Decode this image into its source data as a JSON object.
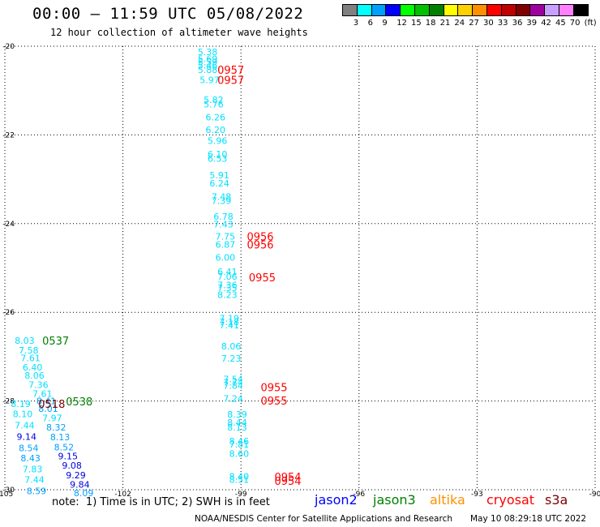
{
  "header": {
    "title": "00:00 — 11:59 UTC 05/08/2022",
    "subtitle": "12 hour collection of altimeter wave heights"
  },
  "legend": {
    "swatches": [
      {
        "label": "3",
        "color": "#808080"
      },
      {
        "label": "6",
        "color": "#00ffff"
      },
      {
        "label": "9",
        "color": "#00a0ff"
      },
      {
        "label": "12",
        "color": "#0000ff"
      },
      {
        "label": "15",
        "color": "#00ff00"
      },
      {
        "label": "18",
        "color": "#00c000"
      },
      {
        "label": "21",
        "color": "#008000"
      },
      {
        "label": "24",
        "color": "#ffff00"
      },
      {
        "label": "27",
        "color": "#ffd000"
      },
      {
        "label": "30",
        "color": "#ff9000"
      },
      {
        "label": "33",
        "color": "#ff0000"
      },
      {
        "label": "36",
        "color": "#c00000"
      },
      {
        "label": "39",
        "color": "#800000"
      },
      {
        "label": "42",
        "color": "#a000a0"
      },
      {
        "label": "45",
        "color": "#c8a0ff"
      },
      {
        "label": "70",
        "color": "#ff80ff"
      },
      {
        "label": "(ft)",
        "color": "#000000"
      }
    ]
  },
  "map": {
    "lon_range": [
      -105,
      -90
    ],
    "lat_range": [
      -30,
      -20
    ],
    "x_ticks": [
      "-105",
      "-102",
      "-99",
      "-96",
      "-93",
      "-90"
    ],
    "y_ticks": [
      "-20",
      "-22",
      "-24",
      "-26",
      "-28",
      "-30"
    ],
    "tick_lons": [
      -105,
      -102,
      -99,
      -96,
      -93,
      -90
    ],
    "tick_lats": [
      -20,
      -22,
      -24,
      -26,
      -28,
      -30
    ],
    "grid": true
  },
  "observations": [
    {
      "text": "5.38",
      "lon": -100.1,
      "lat": -20.13,
      "color": "#00e0ff"
    },
    {
      "text": "5.69",
      "lon": -100.1,
      "lat": -20.28,
      "color": "#00e0ff"
    },
    {
      "text": "5.59",
      "lon": -100.1,
      "lat": -20.36,
      "color": "#00e0ff"
    },
    {
      "text": "5.46",
      "lon": -100.1,
      "lat": -20.43,
      "color": "#00e0ff"
    },
    {
      "text": "5.88",
      "lon": -100.1,
      "lat": -20.53,
      "color": "#00e0ff"
    },
    {
      "text": "5.97",
      "lon": -100.05,
      "lat": -20.76,
      "color": "#00e0ff"
    },
    {
      "text": "5.82",
      "lon": -99.95,
      "lat": -21.21,
      "color": "#00e0ff"
    },
    {
      "text": "5.76",
      "lon": -99.95,
      "lat": -21.31,
      "color": "#00e0ff"
    },
    {
      "text": "6.26",
      "lon": -99.9,
      "lat": -21.6,
      "color": "#00e0ff"
    },
    {
      "text": "6.20",
      "lon": -99.9,
      "lat": -21.88,
      "color": "#00e0ff"
    },
    {
      "text": "5.96",
      "lon": -99.85,
      "lat": -22.13,
      "color": "#00e0ff"
    },
    {
      "text": "6.10",
      "lon": -99.85,
      "lat": -22.43,
      "color": "#00e0ff"
    },
    {
      "text": "6.53",
      "lon": -99.85,
      "lat": -22.53,
      "color": "#00e0ff"
    },
    {
      "text": "5.91",
      "lon": -99.8,
      "lat": -22.91,
      "color": "#00e0ff"
    },
    {
      "text": "6.24",
      "lon": -99.8,
      "lat": -23.09,
      "color": "#00e0ff"
    },
    {
      "text": "7.48",
      "lon": -99.75,
      "lat": -23.39,
      "color": "#00e0ff"
    },
    {
      "text": "7.39",
      "lon": -99.75,
      "lat": -23.48,
      "color": "#00e0ff"
    },
    {
      "text": "6.78",
      "lon": -99.7,
      "lat": -23.84,
      "color": "#00e0ff"
    },
    {
      "text": "7.43",
      "lon": -99.7,
      "lat": -24.01,
      "color": "#00e0ff"
    },
    {
      "text": "7.75",
      "lon": -99.65,
      "lat": -24.29,
      "color": "#00e0ff"
    },
    {
      "text": "6.87",
      "lon": -99.65,
      "lat": -24.47,
      "color": "#00e0ff"
    },
    {
      "text": "6.00",
      "lon": -99.65,
      "lat": -24.76,
      "color": "#00e0ff"
    },
    {
      "text": "6.41",
      "lon": -99.6,
      "lat": -25.08,
      "color": "#00e0ff"
    },
    {
      "text": "7.06",
      "lon": -99.6,
      "lat": -25.19,
      "color": "#00e0ff"
    },
    {
      "text": "7.36",
      "lon": -99.6,
      "lat": -25.38,
      "color": "#00e0ff"
    },
    {
      "text": "7.35",
      "lon": -99.6,
      "lat": -25.45,
      "color": "#00e0ff"
    },
    {
      "text": "8.23",
      "lon": -99.6,
      "lat": -25.6,
      "color": "#00e0ff"
    },
    {
      "text": "7.19",
      "lon": -99.55,
      "lat": -26.13,
      "color": "#00e0ff"
    },
    {
      "text": "7.18",
      "lon": -99.55,
      "lat": -26.22,
      "color": "#00e0ff"
    },
    {
      "text": "7.41",
      "lon": -99.55,
      "lat": -26.29,
      "color": "#00e0ff"
    },
    {
      "text": "8.06",
      "lon": -99.5,
      "lat": -26.76,
      "color": "#00e0ff"
    },
    {
      "text": "7.23",
      "lon": -99.5,
      "lat": -27.04,
      "color": "#00e0ff"
    },
    {
      "text": "7.54",
      "lon": -99.45,
      "lat": -27.5,
      "color": "#00e0ff"
    },
    {
      "text": "7.74",
      "lon": -99.45,
      "lat": -27.58,
      "color": "#00e0ff"
    },
    {
      "text": "7.84",
      "lon": -99.45,
      "lat": -27.65,
      "color": "#00e0ff"
    },
    {
      "text": "7.24",
      "lon": -99.45,
      "lat": -27.94,
      "color": "#00e0ff"
    },
    {
      "text": "8.39",
      "lon": -99.35,
      "lat": -28.3,
      "color": "#00e0ff"
    },
    {
      "text": "8.44",
      "lon": -99.35,
      "lat": -28.48,
      "color": "#00e0ff"
    },
    {
      "text": "8.13",
      "lon": -99.35,
      "lat": -28.59,
      "color": "#00e0ff"
    },
    {
      "text": "8.46",
      "lon": -99.3,
      "lat": -28.9,
      "color": "#00e0ff"
    },
    {
      "text": "7.81",
      "lon": -99.3,
      "lat": -28.98,
      "color": "#00e0ff"
    },
    {
      "text": "8.60",
      "lon": -99.3,
      "lat": -29.19,
      "color": "#00e0ff"
    },
    {
      "text": "8.40",
      "lon": -99.3,
      "lat": -29.7,
      "color": "#00e0ff"
    },
    {
      "text": "8.51",
      "lon": -99.3,
      "lat": -29.77,
      "color": "#00e0ff"
    },
    {
      "text": "8.03",
      "lon": -104.75,
      "lat": -26.64,
      "color": "#00e0ff"
    },
    {
      "text": "7.58",
      "lon": -104.65,
      "lat": -26.86,
      "color": "#00e0ff"
    },
    {
      "text": "7.61",
      "lon": -104.6,
      "lat": -27.03,
      "color": "#00e0ff"
    },
    {
      "text": "6.40",
      "lon": -104.55,
      "lat": -27.24,
      "color": "#00e0ff"
    },
    {
      "text": "8.06",
      "lon": -104.5,
      "lat": -27.42,
      "color": "#00e0ff"
    },
    {
      "text": "7.36",
      "lon": -104.4,
      "lat": -27.63,
      "color": "#00e0ff"
    },
    {
      "text": "7.61",
      "lon": -104.3,
      "lat": -27.83,
      "color": "#00e0ff"
    },
    {
      "text": "8.19",
      "lon": -104.85,
      "lat": -28.06,
      "color": "#00e0ff"
    },
    {
      "text": "8.10",
      "lon": -104.8,
      "lat": -28.29,
      "color": "#00e0ff"
    },
    {
      "text": "7.44",
      "lon": -104.75,
      "lat": -28.55,
      "color": "#00e0ff"
    },
    {
      "text": "9.14",
      "lon": -104.7,
      "lat": -28.8,
      "color": "#0000e0"
    },
    {
      "text": "8.54",
      "lon": -104.65,
      "lat": -29.06,
      "color": "#00a0ff"
    },
    {
      "text": "8.43",
      "lon": -104.6,
      "lat": -29.29,
      "color": "#00a0ff"
    },
    {
      "text": "7.83",
      "lon": -104.55,
      "lat": -29.53,
      "color": "#00e0ff"
    },
    {
      "text": "7.44",
      "lon": -104.5,
      "lat": -29.77,
      "color": "#00e0ff"
    },
    {
      "text": "8.59",
      "lon": -104.45,
      "lat": -30.03,
      "color": "#00a0ff"
    },
    {
      "text": "8.41",
      "lon": -104.2,
      "lat": -28.0,
      "color": "#00a0ff"
    },
    {
      "text": "8.01",
      "lon": -104.15,
      "lat": -28.17,
      "color": "#00a0ff"
    },
    {
      "text": "7.97",
      "lon": -104.05,
      "lat": -28.38,
      "color": "#00e0ff"
    },
    {
      "text": "8.32",
      "lon": -103.95,
      "lat": -28.59,
      "color": "#00a0ff"
    },
    {
      "text": "8.13",
      "lon": -103.85,
      "lat": -28.81,
      "color": "#00a0ff"
    },
    {
      "text": "8.52",
      "lon": -103.75,
      "lat": -29.04,
      "color": "#00a0ff"
    },
    {
      "text": "9.15",
      "lon": -103.65,
      "lat": -29.24,
      "color": "#0000e0"
    },
    {
      "text": "9.08",
      "lon": -103.55,
      "lat": -29.45,
      "color": "#0000e0"
    },
    {
      "text": "9.29",
      "lon": -103.45,
      "lat": -29.67,
      "color": "#0000e0"
    },
    {
      "text": "9.84",
      "lon": -103.35,
      "lat": -29.88,
      "color": "#0000e0"
    },
    {
      "text": "8.09",
      "lon": -103.25,
      "lat": -30.07,
      "color": "#00a0ff"
    }
  ],
  "times": [
    {
      "text": "0957",
      "lon": -99.6,
      "lat": -20.53,
      "color": "#ff0000"
    },
    {
      "text": "0957",
      "lon": -99.6,
      "lat": -20.76,
      "color": "#ff0000"
    },
    {
      "text": "0956",
      "lon": -98.85,
      "lat": -24.29,
      "color": "#ff0000"
    },
    {
      "text": "0956",
      "lon": -98.85,
      "lat": -24.47,
      "color": "#ff0000"
    },
    {
      "text": "0955",
      "lon": -98.8,
      "lat": -25.21,
      "color": "#ff0000"
    },
    {
      "text": "0955",
      "lon": -98.5,
      "lat": -27.69,
      "color": "#ff0000"
    },
    {
      "text": "0955",
      "lon": -98.5,
      "lat": -27.99,
      "color": "#ff0000"
    },
    {
      "text": "0954",
      "lon": -98.15,
      "lat": -29.71,
      "color": "#ff0000"
    },
    {
      "text": "0954",
      "lon": -98.15,
      "lat": -29.8,
      "color": "#ff0000"
    },
    {
      "text": "0537",
      "lon": -104.05,
      "lat": -26.64,
      "color": "#008000"
    },
    {
      "text": "0538",
      "lon": -103.45,
      "lat": -28.01,
      "color": "#008000"
    },
    {
      "text": "0518",
      "lon": -104.15,
      "lat": -28.06,
      "color": "#800000"
    }
  ],
  "footer": {
    "note": "note:  1) Time is in UTC; 2) SWH is in feet",
    "satellites": [
      {
        "name": "jason2",
        "color": "#0000ff"
      },
      {
        "name": "jason3",
        "color": "#008000"
      },
      {
        "name": "altika",
        "color": "#ff9000"
      },
      {
        "name": "cryosat",
        "color": "#ff0000"
      },
      {
        "name": "s3a",
        "color": "#800000"
      }
    ],
    "credit": "NOAA/NESDIS Center for Satellite Applications and Research",
    "timestamp": "May 10 08:29:18 UTC 2022"
  }
}
